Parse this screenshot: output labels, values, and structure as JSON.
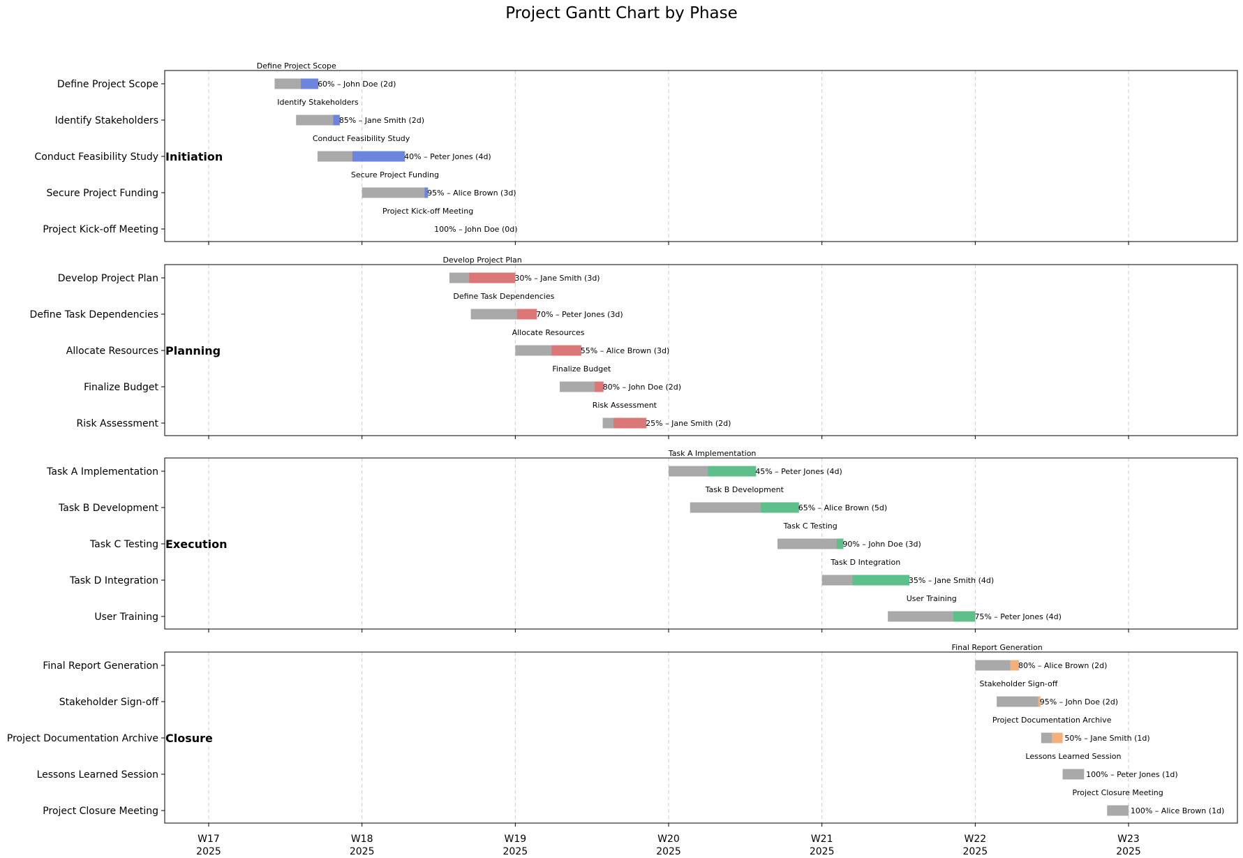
{
  "chart_data": {
    "type": "gantt",
    "title": "Project Gantt Chart by Phase",
    "x_unit": "week",
    "xlim": [
      16.72,
      23.72
    ],
    "x_ticks": [
      {
        "value": 17,
        "week": "W17",
        "year": "2025"
      },
      {
        "value": 18,
        "week": "W18",
        "year": "2025"
      },
      {
        "value": 19,
        "week": "W19",
        "year": "2025"
      },
      {
        "value": 20,
        "week": "W20",
        "year": "2025"
      },
      {
        "value": 21,
        "week": "W21",
        "year": "2025"
      },
      {
        "value": 22,
        "week": "W22",
        "year": "2025"
      },
      {
        "value": 23,
        "week": "W23",
        "year": "2025"
      }
    ],
    "grid": "vertical dashed",
    "phases": [
      {
        "name": "Initiation",
        "color": "#6e85e0",
        "tasks": [
          {
            "task": "Define Project Scope",
            "start": 17.43,
            "duration_weeks": 0.285,
            "progress": 60,
            "owner": "John Doe",
            "duration_label": "2d",
            "annotation": "60% – John Doe (2d)"
          },
          {
            "task": "Identify Stakeholders",
            "start": 17.57,
            "duration_weeks": 0.285,
            "progress": 85,
            "owner": "Jane Smith",
            "duration_label": "2d",
            "annotation": "85% – Jane Smith (2d)"
          },
          {
            "task": "Conduct Feasibility Study",
            "start": 17.71,
            "duration_weeks": 0.57,
            "progress": 40,
            "owner": "Peter Jones",
            "duration_label": "4d",
            "annotation": "40% – Peter Jones (4d)"
          },
          {
            "task": "Secure Project Funding",
            "start": 18.0,
            "duration_weeks": 0.43,
            "progress": 95,
            "owner": "Alice Brown",
            "duration_label": "3d",
            "annotation": "95% – Alice Brown (3d)"
          },
          {
            "task": "Project Kick-off Meeting",
            "start": 18.43,
            "duration_weeks": 0.0,
            "progress": 100,
            "owner": "John Doe",
            "duration_label": "0d",
            "annotation": "100% – John Doe (0d)"
          }
        ]
      },
      {
        "name": "Planning",
        "color": "#dc7777",
        "tasks": [
          {
            "task": "Develop Project Plan",
            "start": 18.57,
            "duration_weeks": 0.43,
            "progress": 30,
            "owner": "Jane Smith",
            "duration_label": "3d",
            "annotation": "30% – Jane Smith (3d)"
          },
          {
            "task": "Define Task Dependencies",
            "start": 18.71,
            "duration_weeks": 0.43,
            "progress": 70,
            "owner": "Peter Jones",
            "duration_label": "3d",
            "annotation": "70% – Peter Jones (3d)"
          },
          {
            "task": "Allocate Resources",
            "start": 19.0,
            "duration_weeks": 0.43,
            "progress": 55,
            "owner": "Alice Brown",
            "duration_label": "3d",
            "annotation": "55% – Alice Brown (3d)"
          },
          {
            "task": "Finalize Budget",
            "start": 19.29,
            "duration_weeks": 0.285,
            "progress": 80,
            "owner": "John Doe",
            "duration_label": "2d",
            "annotation": "80% – John Doe (2d)"
          },
          {
            "task": "Risk Assessment",
            "start": 19.57,
            "duration_weeks": 0.285,
            "progress": 25,
            "owner": "Jane Smith",
            "duration_label": "2d",
            "annotation": "25% – Jane Smith (2d)"
          }
        ]
      },
      {
        "name": "Execution",
        "color": "#5dbf8a",
        "tasks": [
          {
            "task": "Task A Implementation",
            "start": 20.0,
            "duration_weeks": 0.57,
            "progress": 45,
            "owner": "Peter Jones",
            "duration_label": "4d",
            "annotation": "45% – Peter Jones (4d)"
          },
          {
            "task": "Task B Development",
            "start": 20.14,
            "duration_weeks": 0.71,
            "progress": 65,
            "owner": "Alice Brown",
            "duration_label": "5d",
            "annotation": "65% – Alice Brown (5d)"
          },
          {
            "task": "Task C Testing",
            "start": 20.71,
            "duration_weeks": 0.43,
            "progress": 90,
            "owner": "John Doe",
            "duration_label": "3d",
            "annotation": "90% – John Doe (3d)"
          },
          {
            "task": "Task D Integration",
            "start": 21.0,
            "duration_weeks": 0.57,
            "progress": 35,
            "owner": "Jane Smith",
            "duration_label": "4d",
            "annotation": "35% – Jane Smith (4d)"
          },
          {
            "task": "User Training",
            "start": 21.43,
            "duration_weeks": 0.57,
            "progress": 75,
            "owner": "Peter Jones",
            "duration_label": "4d",
            "annotation": "75% – Peter Jones (4d)"
          }
        ]
      },
      {
        "name": "Closure",
        "color": "#f5b07a",
        "tasks": [
          {
            "task": "Final Report Generation",
            "start": 22.0,
            "duration_weeks": 0.285,
            "progress": 80,
            "owner": "Alice Brown",
            "duration_label": "2d",
            "annotation": "80% – Alice Brown (2d)"
          },
          {
            "task": "Stakeholder Sign-off",
            "start": 22.14,
            "duration_weeks": 0.285,
            "progress": 95,
            "owner": "John Doe",
            "duration_label": "2d",
            "annotation": "95% – John Doe (2d)"
          },
          {
            "task": "Project Documentation Archive",
            "start": 22.43,
            "duration_weeks": 0.14,
            "progress": 50,
            "owner": "Jane Smith",
            "duration_label": "1d",
            "annotation": "50% – Jane Smith (1d)"
          },
          {
            "task": "Lessons Learned Session",
            "start": 22.57,
            "duration_weeks": 0.14,
            "progress": 100,
            "owner": "Peter Jones",
            "duration_label": "1d",
            "annotation": "100% – Peter Jones (1d)"
          },
          {
            "task": "Project Closure Meeting",
            "start": 22.86,
            "duration_weeks": 0.14,
            "progress": 100,
            "owner": "Alice Brown",
            "duration_label": "1d",
            "annotation": "100% – Alice Brown (1d)"
          }
        ]
      }
    ],
    "colors": {
      "base_bar": "#a9a9a9",
      "grid": "#cccccc"
    }
  }
}
